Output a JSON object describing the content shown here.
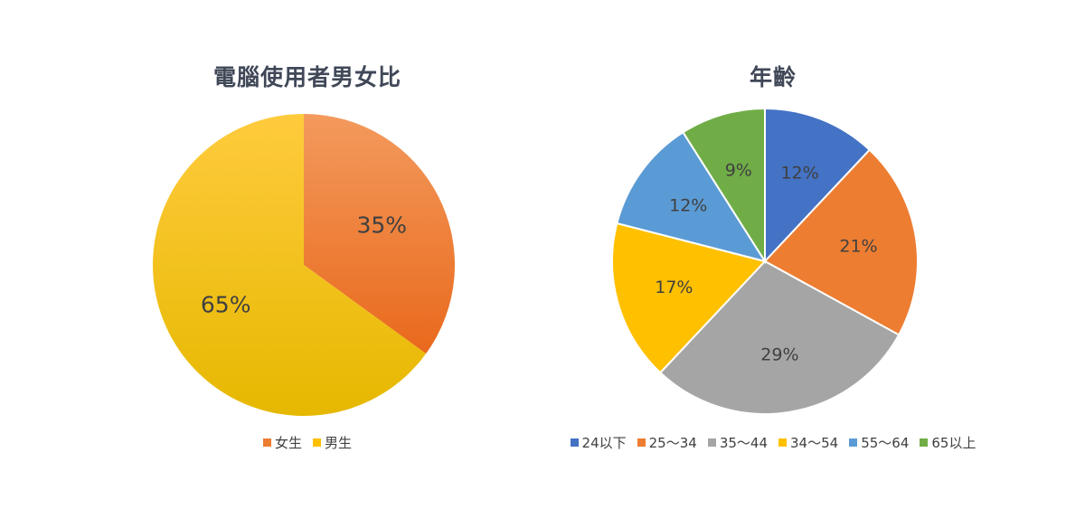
{
  "chart_data": [
    {
      "type": "pie",
      "title": "電腦使用者男女比",
      "categories": [
        "女生",
        "男生"
      ],
      "values": [
        35,
        65
      ],
      "labels": [
        "35%",
        "65%"
      ],
      "colors": [
        "#ED7D31",
        "#FFC000"
      ],
      "legend_position": "bottom"
    },
    {
      "type": "pie",
      "title": "年齡",
      "categories": [
        "24以下",
        "25～34",
        "35～44",
        "34～54",
        "55～64",
        "65以上"
      ],
      "values": [
        12,
        21,
        29,
        17,
        12,
        9
      ],
      "labels": [
        "12%",
        "21%",
        "29%",
        "17%",
        "12%",
        "9%"
      ],
      "colors": [
        "#4472C4",
        "#ED7D31",
        "#A5A5A5",
        "#FFC000",
        "#5B9BD5",
        "#70AD47"
      ],
      "legend_position": "bottom"
    }
  ]
}
